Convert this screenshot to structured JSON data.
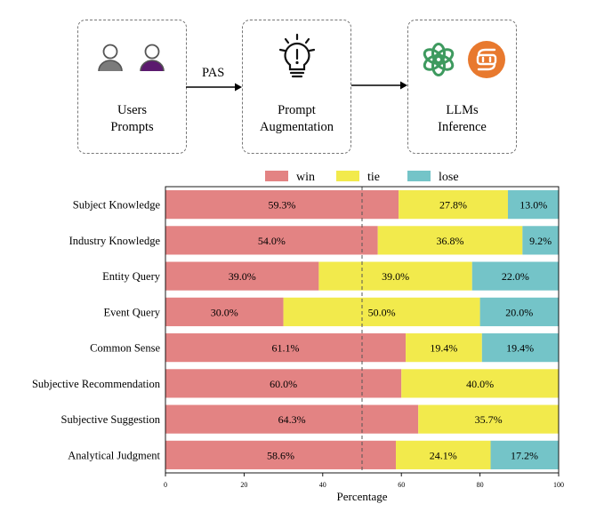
{
  "pipeline": {
    "users_box": {
      "line1": "Users",
      "line2": "Prompts",
      "icon": "person-icon"
    },
    "arrow_label": "PAS",
    "prompt_box": {
      "line1": "Prompt",
      "line2": "Augmentation",
      "icon": "lightbulb-icon"
    },
    "llm_box": {
      "line1": "LLMs",
      "line2": "Inference",
      "icons": [
        "openai-logo",
        "claude-logo"
      ]
    }
  },
  "chart_data": {
    "type": "bar",
    "orientation": "horizontal",
    "stacked": true,
    "title": "",
    "xlabel": "Percentage",
    "ylabel": "",
    "xlim": [
      0,
      100
    ],
    "xticks": [
      0,
      20,
      40,
      60,
      80,
      100
    ],
    "reference_line": 50,
    "legend_position": "top",
    "categories": [
      "Subject Knowledge",
      "Industry Knowledge",
      "Entity Query",
      "Event Query",
      "Common Sense",
      "Subjective Recommendation",
      "Subjective Suggestion",
      "Analytical Judgment"
    ],
    "series": [
      {
        "name": "win",
        "color": "#e38383",
        "values": [
          59.3,
          54.0,
          39.0,
          30.0,
          61.1,
          60.0,
          64.3,
          58.6
        ]
      },
      {
        "name": "tie",
        "color": "#f2ea4c",
        "values": [
          27.8,
          36.8,
          39.0,
          50.0,
          19.4,
          40.0,
          35.7,
          24.1
        ]
      },
      {
        "name": "lose",
        "color": "#74c4c8",
        "values": [
          13.0,
          9.2,
          22.0,
          20.0,
          19.4,
          0,
          0,
          17.2
        ]
      }
    ],
    "labels": [
      [
        "59.3%",
        "27.8%",
        "13.0%"
      ],
      [
        "54.0%",
        "36.8%",
        "9.2%"
      ],
      [
        "39.0%",
        "39.0%",
        "22.0%"
      ],
      [
        "30.0%",
        "50.0%",
        "20.0%"
      ],
      [
        "61.1%",
        "19.4%",
        "19.4%"
      ],
      [
        "60.0%",
        "40.0%",
        ""
      ],
      [
        "64.3%",
        "35.7%",
        ""
      ],
      [
        "58.6%",
        "24.1%",
        "17.2%"
      ]
    ]
  }
}
